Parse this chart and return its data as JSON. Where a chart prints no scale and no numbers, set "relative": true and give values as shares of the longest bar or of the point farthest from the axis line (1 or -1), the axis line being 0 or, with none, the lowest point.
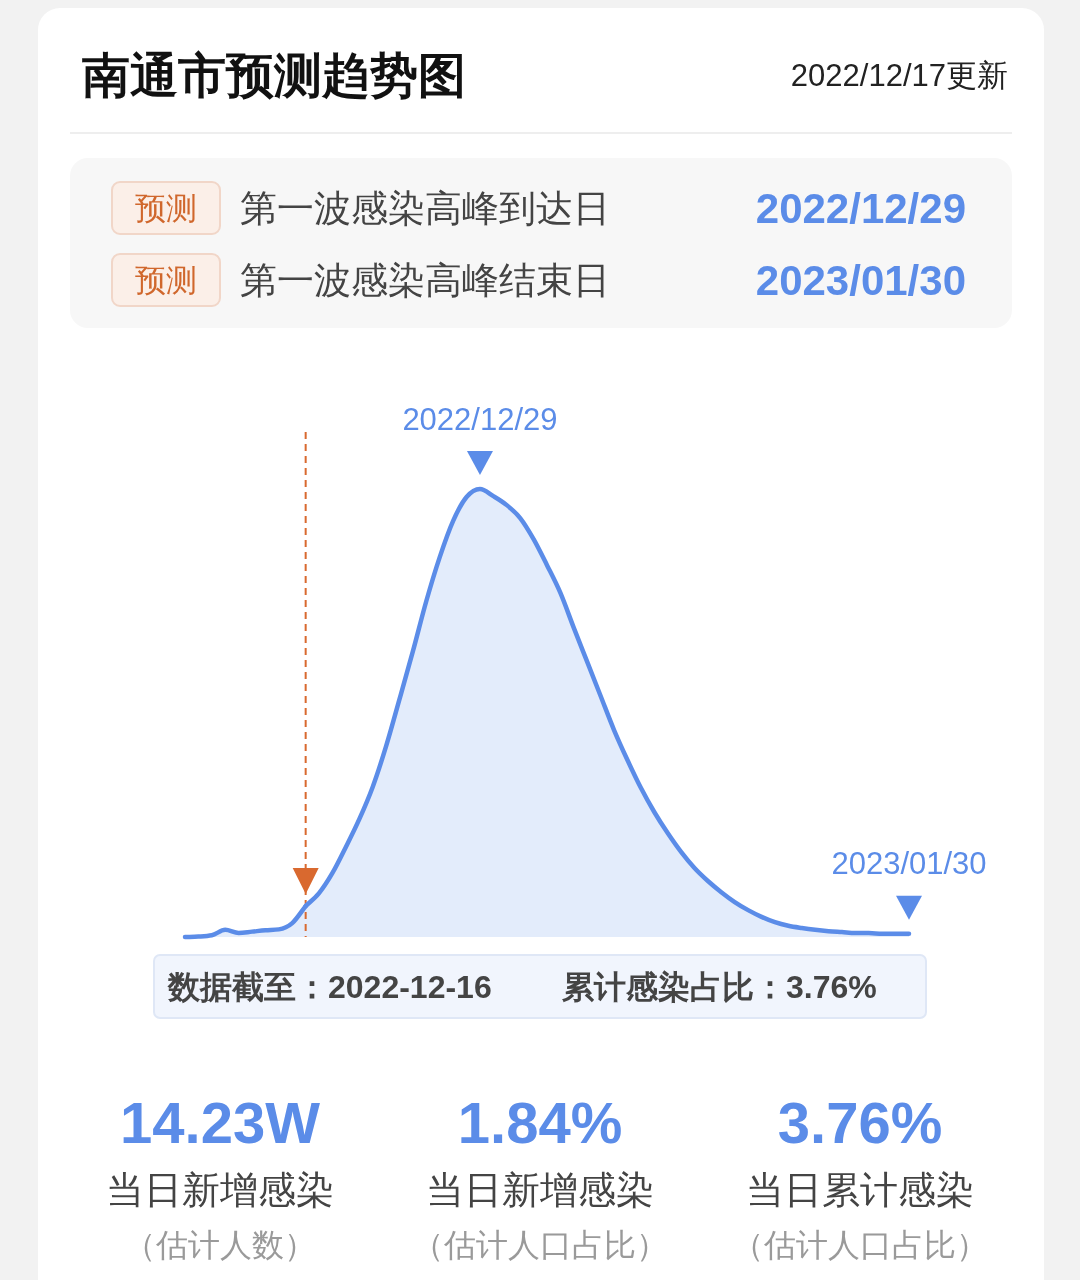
{
  "chart_data": {
    "type": "area",
    "title": "南通市预测趋势图",
    "subtitle": "2022/12/17更新",
    "relative": true,
    "categories": [
      null,
      null,
      null,
      null,
      null,
      null,
      null,
      null,
      null,
      null,
      null,
      null,
      null,
      null,
      null,
      null,
      null,
      null,
      null,
      null,
      null,
      null,
      "2022/12/29",
      null,
      null,
      null,
      null,
      null,
      null,
      null,
      null,
      null,
      null,
      null,
      null,
      null,
      null,
      null,
      null,
      null,
      null,
      null,
      null,
      null,
      null,
      null,
      null,
      null,
      null,
      null,
      null,
      null,
      null,
      null,
      "2023/01/30"
    ],
    "series": [
      {
        "color": "#5b8ce8",
        "values": [
          0,
          0.001,
          0.004,
          0.016,
          0.009,
          0.012,
          0.015,
          0.017,
          0.031,
          0.069,
          null,
          null,
          null,
          null,
          null,
          null,
          null,
          null,
          null,
          null,
          null,
          null,
          null,
          null,
          null,
          null,
          null,
          null,
          null,
          null,
          null,
          null,
          null,
          null,
          null,
          null,
          null,
          null,
          null,
          null,
          null,
          null,
          null,
          null,
          null,
          null,
          null,
          null,
          null,
          null,
          null,
          null,
          null,
          null,
          null
        ]
      },
      {
        "color": "#5b8ce8",
        "values": [
          null,
          null,
          null,
          null,
          null,
          null,
          null,
          null,
          null,
          0.069,
          0.098,
          0.143,
          0.201,
          0.263,
          0.335,
          0.426,
          0.531,
          0.638,
          0.75,
          0.848,
          0.929,
          0.982,
          1,
          0.984,
          0.964,
          0.935,
          0.888,
          0.83,
          0.768,
          0.69,
          0.614,
          0.538,
          0.462,
          0.395,
          0.333,
          0.279,
          0.232,
          0.19,
          0.154,
          0.125,
          0.1,
          0.078,
          0.06,
          0.045,
          0.033,
          0.025,
          0.02,
          0.016,
          0.013,
          0.011,
          0.009,
          0.009,
          0.007,
          0.007,
          0.007
        ]
      }
    ],
    "annotations": [
      "预测",
      "第一波感染高峰到达日",
      "2022/12/29",
      "预测",
      "第一波感染高峰结束日",
      "2023/01/30",
      "数据截至：2022-12-16",
      "累计感染占比：3.76%",
      "14.23W",
      "当日新增感染",
      "（估计人数）",
      "1.84%",
      "当日新增感染",
      "（估计人口占比）",
      "3.76%",
      "当日累计感染",
      "（估计人口占比）"
    ]
  }
}
